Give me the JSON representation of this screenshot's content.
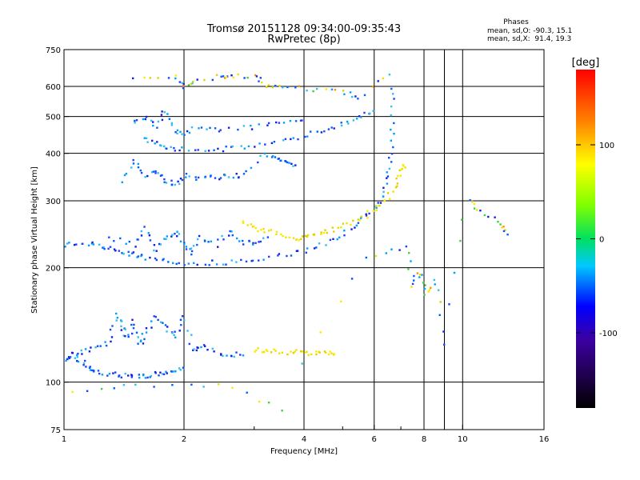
{
  "header": {
    "title": "Tromsø 20151128 09:34:00-09:35:43",
    "subtitle": "RwPretec (8p)"
  },
  "phase_stats": {
    "heading": "Phases",
    "line_o": "mean, sd,O: -90.3, 15.1",
    "line_x": "mean, sd,X:  91.4, 19.3"
  },
  "chart_data": {
    "type": "scatter",
    "xlabel": "Frequency [MHz]",
    "ylabel": "Stationary phase Virtual Height [km]",
    "xscale": "log",
    "yscale": "log",
    "xlim": [
      1,
      16
    ],
    "ylim": [
      75,
      750
    ],
    "x_ticks": [
      1,
      2,
      4,
      6,
      8,
      10,
      16
    ],
    "x_tick_labels": [
      "1",
      "2",
      "4",
      "6",
      "8",
      "10",
      "16"
    ],
    "x_minor_ticks": [
      3,
      5,
      7,
      9
    ],
    "x_grid": [
      2,
      4,
      6,
      8,
      9,
      10
    ],
    "y_ticks": [
      75,
      100,
      200,
      300,
      400,
      500,
      600,
      750
    ],
    "y_tick_labels": [
      "75",
      "100",
      "200",
      "300",
      "400",
      "500",
      "600",
      "750"
    ],
    "y_grid": [
      100,
      200,
      300,
      400,
      500,
      600
    ],
    "grid": true,
    "colorbar": {
      "label": "[deg]",
      "range": [
        -180,
        180
      ],
      "ticks": [
        100,
        0,
        -100
      ],
      "tick_labels": [
        "100",
        "0",
        "-100"
      ]
    },
    "traces": [
      {
        "name_hint": "E-region O-mode lower edge",
        "points": [
          [
            1.0,
            115
          ],
          [
            1.05,
            118
          ],
          [
            1.1,
            114
          ],
          [
            1.15,
            110
          ],
          [
            1.2,
            107
          ],
          [
            1.3,
            105
          ],
          [
            1.4,
            104
          ],
          [
            1.5,
            104
          ],
          [
            1.6,
            104
          ],
          [
            1.7,
            105
          ],
          [
            1.8,
            106
          ],
          [
            1.9,
            107
          ],
          [
            2.0,
            108
          ]
        ]
      },
      {
        "name_hint": "E-region cloud",
        "points": [
          [
            1.0,
            116
          ],
          [
            1.1,
            120
          ],
          [
            1.2,
            122
          ],
          [
            1.3,
            128
          ],
          [
            1.35,
            150
          ],
          [
            1.4,
            140
          ],
          [
            1.45,
            130
          ],
          [
            1.5,
            145
          ],
          [
            1.55,
            125
          ],
          [
            1.6,
            135
          ],
          [
            1.7,
            150
          ],
          [
            1.8,
            140
          ],
          [
            1.9,
            130
          ],
          [
            2.0,
            150
          ],
          [
            2.1,
            120
          ],
          [
            2.2,
            125
          ],
          [
            2.4,
            120
          ],
          [
            2.6,
            118
          ],
          [
            2.8,
            119
          ]
        ]
      },
      {
        "name_hint": "E-region X-mode",
        "points": [
          [
            3.0,
            122
          ],
          [
            3.2,
            121
          ],
          [
            3.5,
            120
          ],
          [
            3.8,
            120
          ],
          [
            4.0,
            120
          ],
          [
            4.3,
            119
          ],
          [
            4.6,
            119
          ],
          [
            4.8,
            118
          ]
        ]
      },
      {
        "name_hint": "F-region O-mode lower edge",
        "points": [
          [
            1.0,
            230
          ],
          [
            1.1,
            232
          ],
          [
            1.2,
            230
          ],
          [
            1.3,
            225
          ],
          [
            1.4,
            220
          ],
          [
            1.5,
            216
          ],
          [
            1.6,
            212
          ],
          [
            1.8,
            208
          ],
          [
            2.0,
            206
          ],
          [
            2.3,
            206
          ],
          [
            2.6,
            207
          ],
          [
            3.0,
            210
          ],
          [
            3.5,
            215
          ],
          [
            4.0,
            222
          ],
          [
            4.5,
            232
          ],
          [
            5.0,
            245
          ],
          [
            5.5,
            262
          ],
          [
            6.0,
            285
          ],
          [
            6.3,
            310
          ],
          [
            6.5,
            350
          ],
          [
            6.6,
            400
          ],
          [
            6.65,
            480
          ],
          [
            6.7,
            600
          ]
        ]
      },
      {
        "name_hint": "F-region cloud",
        "points": [
          [
            1.3,
            240
          ],
          [
            1.5,
            230
          ],
          [
            1.6,
            255
          ],
          [
            1.7,
            220
          ],
          [
            1.8,
            240
          ],
          [
            1.9,
            250
          ],
          [
            2.0,
            230
          ],
          [
            2.1,
            220
          ],
          [
            2.2,
            240
          ],
          [
            2.4,
            230
          ],
          [
            2.6,
            250
          ],
          [
            2.8,
            235
          ],
          [
            3.0,
            230
          ],
          [
            3.2,
            240
          ]
        ]
      },
      {
        "name_hint": "F-region X-mode",
        "points": [
          [
            2.8,
            265
          ],
          [
            3.0,
            255
          ],
          [
            3.2,
            250
          ],
          [
            3.5,
            245
          ],
          [
            3.8,
            240
          ],
          [
            4.0,
            240
          ],
          [
            4.3,
            245
          ],
          [
            4.6,
            250
          ],
          [
            5.0,
            258
          ],
          [
            5.5,
            268
          ],
          [
            6.0,
            285
          ],
          [
            6.4,
            300
          ],
          [
            6.8,
            330
          ],
          [
            7.0,
            360
          ],
          [
            7.1,
            370
          ]
        ]
      },
      {
        "name_hint": "Multi-hop O-mode",
        "points": [
          [
            1.6,
            440
          ],
          [
            1.7,
            425
          ],
          [
            1.8,
            415
          ],
          [
            2.0,
            410
          ],
          [
            2.3,
            410
          ],
          [
            2.6,
            412
          ],
          [
            3.0,
            420
          ],
          [
            3.5,
            430
          ],
          [
            4.0,
            445
          ],
          [
            4.5,
            460
          ],
          [
            5.0,
            480
          ],
          [
            5.5,
            500
          ],
          [
            6.0,
            520
          ]
        ]
      },
      {
        "name_hint": "Multi-hop cloud",
        "points": [
          [
            1.5,
            480
          ],
          [
            1.6,
            500
          ],
          [
            1.7,
            470
          ],
          [
            1.8,
            520
          ],
          [
            1.9,
            460
          ],
          [
            2.0,
            450
          ],
          [
            2.2,
            470
          ],
          [
            2.5,
            460
          ],
          [
            3.0,
            470
          ],
          [
            3.5,
            480
          ],
          [
            4.0,
            490
          ]
        ]
      },
      {
        "name_hint": "Mid-height echoes",
        "points": [
          [
            1.4,
            340
          ],
          [
            1.5,
            380
          ],
          [
            1.6,
            350
          ],
          [
            1.7,
            360
          ],
          [
            1.8,
            340
          ],
          [
            1.9,
            330
          ],
          [
            2.0,
            350
          ],
          [
            2.2,
            345
          ],
          [
            2.4,
            345
          ],
          [
            2.6,
            350
          ],
          [
            2.8,
            350
          ],
          [
            3.2,
            400
          ],
          [
            3.4,
            390
          ],
          [
            3.6,
            380
          ],
          [
            3.8,
            370
          ]
        ]
      },
      {
        "name_hint": "Upper echoes",
        "points": [
          [
            1.5,
            630
          ],
          [
            1.9,
            640
          ],
          [
            2.0,
            600
          ],
          [
            2.1,
            620
          ],
          [
            2.5,
            640
          ],
          [
            2.6,
            640
          ],
          [
            3.0,
            640
          ],
          [
            3.2,
            600
          ],
          [
            3.5,
            600
          ],
          [
            4.2,
            590
          ],
          [
            5.0,
            580
          ],
          [
            5.5,
            560
          ],
          [
            6.6,
            650
          ]
        ]
      },
      {
        "name_hint": "Isolated echoes",
        "points": [
          [
            1.05,
            95
          ],
          [
            1.5,
            98
          ],
          [
            2.45,
            98
          ],
          [
            3.5,
            85
          ],
          [
            5.8,
            215
          ],
          [
            7.2,
            225
          ],
          [
            7.5,
            180
          ],
          [
            7.8,
            195
          ],
          [
            8.1,
            170
          ],
          [
            8.5,
            185
          ],
          [
            9.0,
            125
          ],
          [
            10.3,
            305
          ],
          [
            11.0,
            280
          ],
          [
            12.5,
            260
          ],
          [
            12.8,
            245
          ]
        ]
      }
    ]
  }
}
